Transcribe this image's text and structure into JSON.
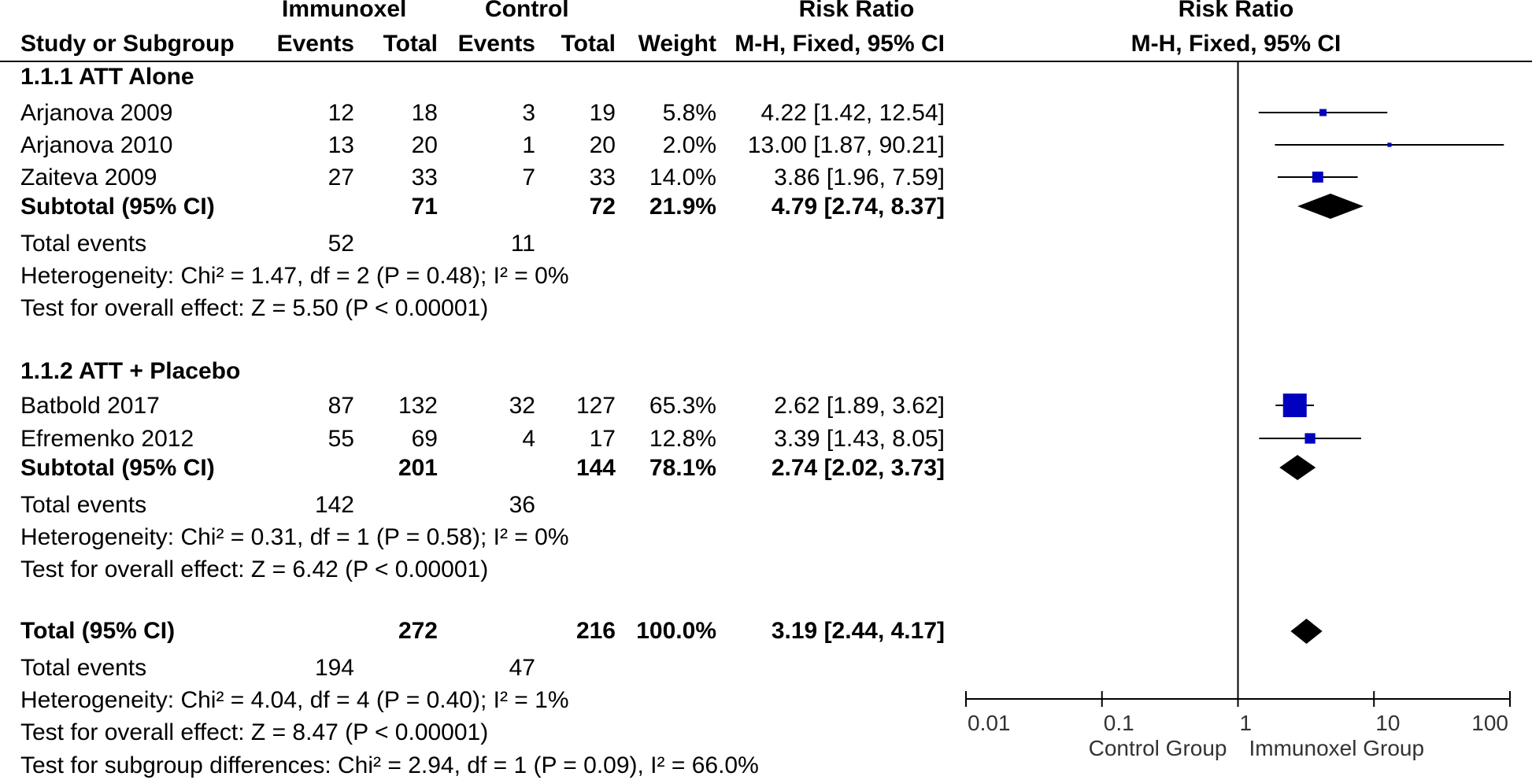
{
  "headers": {
    "group_a": "Immunoxel",
    "group_b": "Control",
    "effect_col_top": "Risk Ratio",
    "effect_col_sub": "M-H, Fixed, 95% CI",
    "plot_top": "Risk Ratio",
    "plot_sub": "M-H, Fixed, 95% CI",
    "study": "Study or Subgroup",
    "events_a": "Events",
    "total_a": "Total",
    "events_b": "Events",
    "total_b": "Total",
    "weight": "Weight"
  },
  "groups": [
    {
      "title": "1.1.1 ATT Alone",
      "studies": [
        {
          "name": "Arjanova 2009",
          "events_a": "12",
          "total_a": "18",
          "events_b": "3",
          "total_b": "19",
          "weight": "5.8%",
          "ci": "4.22 [1.42, 12.54]"
        },
        {
          "name": "Arjanova 2010",
          "events_a": "13",
          "total_a": "20",
          "events_b": "1",
          "total_b": "20",
          "weight": "2.0%",
          "ci": "13.00 [1.87, 90.21]"
        },
        {
          "name": "Zaiteva 2009",
          "events_a": "27",
          "total_a": "33",
          "events_b": "7",
          "total_b": "33",
          "weight": "14.0%",
          "ci": "3.86 [1.96, 7.59]"
        }
      ],
      "subtotal": {
        "label": "Subtotal (95% CI)",
        "total_a": "71",
        "total_b": "72",
        "weight": "21.9%",
        "ci": "4.79 [2.74, 8.37]"
      },
      "total_events": {
        "label": "Total events",
        "a": "52",
        "b": "11"
      },
      "heterogeneity": "Heterogeneity: Chi² = 1.47, df = 2 (P = 0.48); I² = 0%",
      "overall": "Test for overall effect: Z = 5.50 (P < 0.00001)"
    },
    {
      "title": "1.1.2 ATT + Placebo",
      "studies": [
        {
          "name": "Batbold 2017",
          "events_a": "87",
          "total_a": "132",
          "events_b": "32",
          "total_b": "127",
          "weight": "65.3%",
          "ci": "2.62 [1.89, 3.62]"
        },
        {
          "name": "Efremenko 2012",
          "events_a": "55",
          "total_a": "69",
          "events_b": "4",
          "total_b": "17",
          "weight": "12.8%",
          "ci": "3.39 [1.43, 8.05]"
        }
      ],
      "subtotal": {
        "label": "Subtotal (95% CI)",
        "total_a": "201",
        "total_b": "144",
        "weight": "78.1%",
        "ci": "2.74 [2.02, 3.73]"
      },
      "total_events": {
        "label": "Total events",
        "a": "142",
        "b": "36"
      },
      "heterogeneity": "Heterogeneity: Chi² = 0.31, df = 1 (P = 0.58); I² = 0%",
      "overall": "Test for overall effect: Z = 6.42 (P < 0.00001)"
    }
  ],
  "total": {
    "label": "Total (95% CI)",
    "total_a": "272",
    "total_b": "216",
    "weight": "100.0%",
    "ci": "3.19 [2.44, 4.17]"
  },
  "total_events": {
    "label": "Total events",
    "a": "194",
    "b": "47"
  },
  "heterogeneity": "Heterogeneity: Chi² = 4.04, df = 4 (P = 0.40); I² = 1%",
  "overall": "Test for overall effect: Z = 8.47 (P < 0.00001)",
  "subgroup_diff": "Test for subgroup differences: Chi² = 2.94, df = 1 (P = 0.09), I² = 66.0%",
  "chart_data": {
    "type": "forest",
    "scale": "log",
    "xlim": [
      0.01,
      100
    ],
    "ticks": [
      0.01,
      0.1,
      1,
      10,
      100
    ],
    "tick_labels": [
      "0.01",
      "0.1",
      "1",
      "10",
      "100"
    ],
    "x_left_label": "Control Group",
    "x_right_label": "Immunoxel Group",
    "null_value": 1,
    "marker_color": "#0000c0",
    "diamond_color": "#000000",
    "studies": [
      {
        "name": "Arjanova 2009",
        "rr": 4.22,
        "lo": 1.42,
        "hi": 12.54,
        "weight": 5.8
      },
      {
        "name": "Arjanova 2010",
        "rr": 13.0,
        "lo": 1.87,
        "hi": 90.21,
        "weight": 2.0
      },
      {
        "name": "Zaiteva 2009",
        "rr": 3.86,
        "lo": 1.96,
        "hi": 7.59,
        "weight": 14.0
      },
      {
        "name": "Batbold 2017",
        "rr": 2.62,
        "lo": 1.89,
        "hi": 3.62,
        "weight": 65.3
      },
      {
        "name": "Efremenko 2012",
        "rr": 3.39,
        "lo": 1.43,
        "hi": 8.05,
        "weight": 12.8
      }
    ],
    "diamonds": [
      {
        "name": "Subtotal 1.1.1",
        "rr": 4.79,
        "lo": 2.74,
        "hi": 8.37
      },
      {
        "name": "Subtotal 1.1.2",
        "rr": 2.74,
        "lo": 2.02,
        "hi": 3.73
      },
      {
        "name": "Total",
        "rr": 3.19,
        "lo": 2.44,
        "hi": 4.17
      }
    ]
  }
}
